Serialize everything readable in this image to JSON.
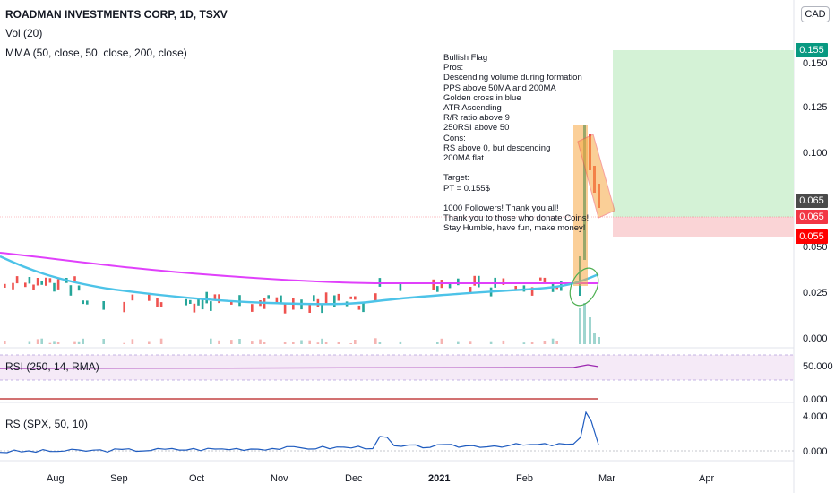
{
  "header": {
    "symbol_title": "ROADMAN INVESTMENTS CORP, 1D, TSXV",
    "vol_indicator": "Vol (20)",
    "mma_indicator": "MMA (50, close, 50, close, 200, close)",
    "currency": "CAD"
  },
  "price_axis": {
    "labels": [
      "0.150",
      "0.125",
      "0.100",
      "0.050",
      "0.025",
      "0.000"
    ],
    "tags": [
      {
        "value": "0.155",
        "color": "#089981"
      },
      {
        "value": "0.065",
        "color": "#4a4a4a"
      },
      {
        "value": "0.065",
        "color": "#f23645"
      },
      {
        "value": "0.055",
        "color": "#ff0000"
      }
    ]
  },
  "annotation": {
    "text": "Bullish Flag\nPros:\nDescending volume during formation\nPPS above 50MA and 200MA\nGolden cross in blue\nATR Ascending\nR/R ratio above 9\n250RSI above 50\nCons:\nRS above 0, but descending\n200MA flat\n\nTarget:\nPT = 0.155$\n\n1000 Followers! Thank you all!\nThank you to those who donate Coins!\nStay Humble, have fun, make money!"
  },
  "rsi_pane": {
    "title": "RSI (250, 14, RMA)",
    "labels": [
      "50.000",
      "0.000"
    ]
  },
  "rs_pane": {
    "title": "RS (SPX, 50, 10)",
    "labels": [
      "4.000",
      "0.000"
    ]
  },
  "time_axis": {
    "months": [
      "Aug",
      "Sep",
      "Oct",
      "Nov",
      "Dec",
      "2021",
      "Feb",
      "Mar",
      "Apr"
    ]
  },
  "colors": {
    "up": "#26a69a",
    "down": "#ef5350",
    "ma50": "#4dc3e8",
    "ma200": "#e040fb",
    "profit_zone": "#d4f2d6",
    "loss_zone": "#fad4d6"
  },
  "chart_data": {
    "type": "candlestick",
    "series": [
      {
        "name": "MMA 50",
        "color": "#4dc3e8"
      },
      {
        "name": "MMA 200",
        "color": "#e040fb"
      }
    ],
    "price_range": [
      0,
      0.16
    ],
    "target": 0.155,
    "entry": 0.065,
    "stop": 0.055
  }
}
